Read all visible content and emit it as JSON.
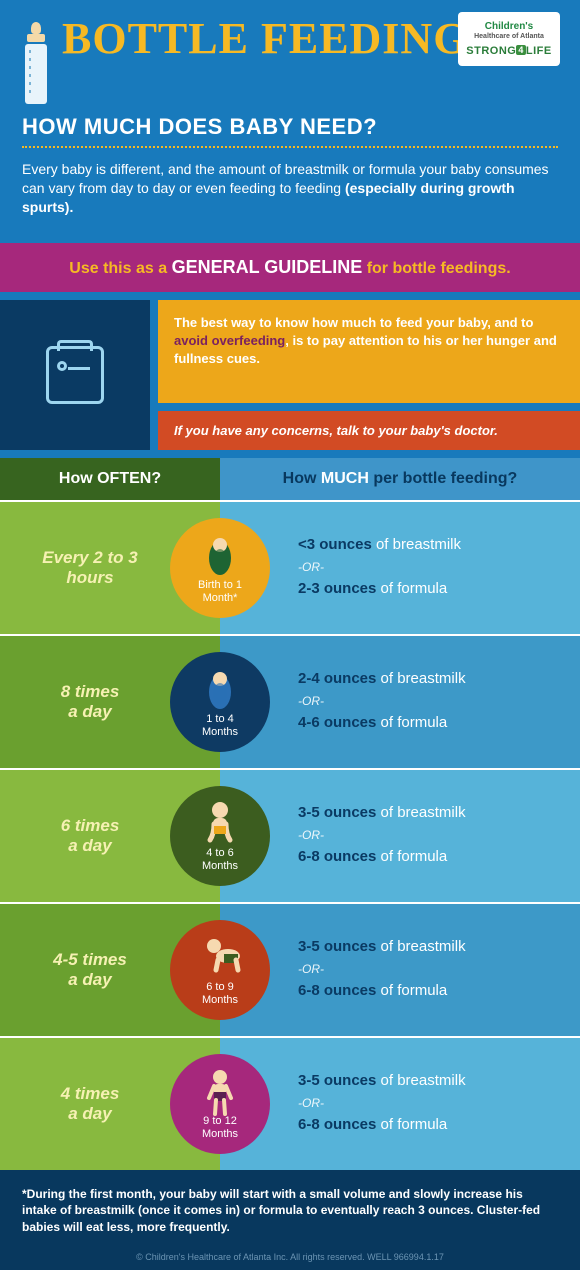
{
  "logo": {
    "line1": "Children's",
    "line2": "Healthcare of Atlanta",
    "line3_a": "STRONG",
    "line3_b": "4",
    "line3_c": "LIFE"
  },
  "title": "BOTTLE FEEDING:",
  "subtitle": "HOW MUCH DOES BABY NEED?",
  "intro_pre": "Every baby is different, and the amount of breastmilk or formula your baby consumes can vary from day to day or even feeding to feeding ",
  "intro_bold": "(especially during growth spurts).",
  "guideline_pre": "Use this as a ",
  "guideline_mid": "GENERAL GUIDELINE",
  "guideline_post": " for bottle feedings.",
  "advice1_pre": "The best way to know how much to feed your baby, and to ",
  "advice1_hl": "avoid overfeeding",
  "advice1_post": ", is to pay attention to his or her hunger and fullness cues.",
  "advice2": "If you have any concerns, talk to your baby's doctor.",
  "th_left_a": "How ",
  "th_left_b": "OFTEN?",
  "th_right_a": "How ",
  "th_right_b": "MUCH",
  "th_right_c": " per bottle feeding?",
  "rows": [
    {
      "left_bg": "#88b93f",
      "right_bg": "#56b3d9",
      "left_a": "Every 2 to 3",
      "left_b": "hours",
      "badge_bg": "#eda71a",
      "age_a": "Birth to 1",
      "age_b": "Month*",
      "bm": "<3 ounces",
      "fm": "2-3 ounces",
      "swaddle": "#1e6433"
    },
    {
      "left_bg": "#6aa02f",
      "right_bg": "#3d99c8",
      "left_a": "8 times",
      "left_b": "a day",
      "badge_bg": "#0e3a63",
      "age_a": "1 to 4",
      "age_b": "Months",
      "bm": "2-4 ounces",
      "fm": "4-6 ounces",
      "swaddle": "#2a70b5"
    },
    {
      "left_bg": "#88b93f",
      "right_bg": "#56b3d9",
      "left_a": "6 times",
      "left_b": "a day",
      "badge_bg": "#3c5d1f",
      "age_a": "4 to 6",
      "age_b": "Months",
      "bm": "3-5 ounces",
      "fm": "6-8 ounces",
      "baby": "sit"
    },
    {
      "left_bg": "#6aa02f",
      "right_bg": "#3d99c8",
      "left_a": "4-5 times",
      "left_b": "a day",
      "badge_bg": "#b93d19",
      "age_a": "6 to 9",
      "age_b": "Months",
      "bm": "3-5 ounces",
      "fm": "6-8 ounces",
      "baby": "crawl"
    },
    {
      "left_bg": "#88b93f",
      "right_bg": "#56b3d9",
      "left_a": "4 times",
      "left_b": "a day",
      "badge_bg": "#a6287c",
      "age_a": "9 to 12",
      "age_b": "Months",
      "bm": "3-5 ounces",
      "fm": "6-8 ounces",
      "baby": "stand"
    }
  ],
  "of_bm": " of breastmilk",
  "of_fm": " of formula",
  "or": "-OR-",
  "note": "*During the first month, your baby will start with a small volume and slowly increase his intake of breastmilk (once it comes in) or formula to eventually reach 3 ounces. Cluster-fed babies will eat less, more frequently.",
  "copy": "© Children's Healthcare of Atlanta Inc. All rights reserved. WELL 966994.1.17"
}
